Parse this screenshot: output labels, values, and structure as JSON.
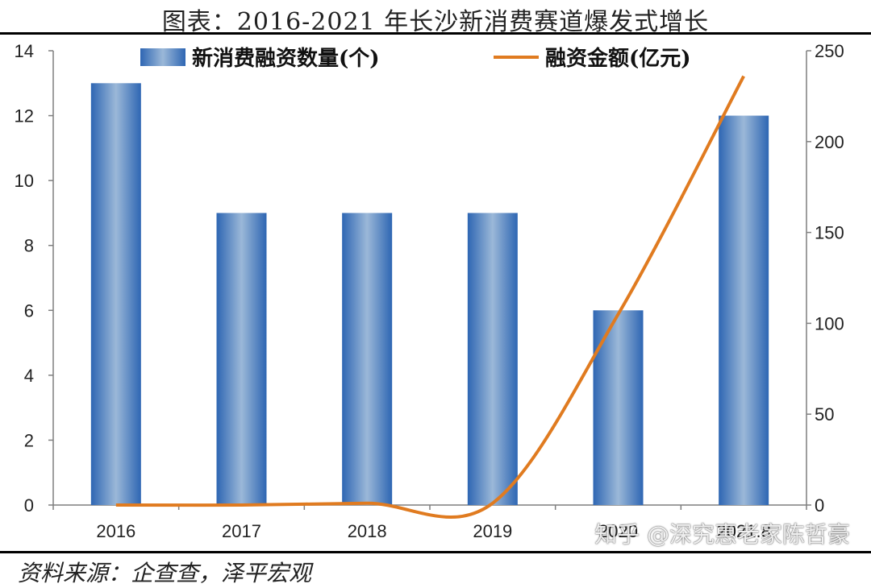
{
  "header": {
    "title": "图表：2016-2021 年长沙新消费赛道爆发式增长"
  },
  "footer": {
    "source": "资料来源：企查查，泽平宏观",
    "watermark": "知乎 @深究惠老家陈哲豪"
  },
  "colors": {
    "bar": "#2f6db8",
    "line": "#e07b20",
    "axis": "#7f7f7f"
  },
  "chart_data": {
    "type": "bar",
    "categories": [
      "2016",
      "2017",
      "2018",
      "2019",
      "2020",
      "2021.8"
    ],
    "series": [
      {
        "name": "新消费融资数量(个)",
        "type": "bar",
        "axis": "left",
        "values": [
          13,
          9,
          9,
          9,
          6,
          12
        ]
      },
      {
        "name": "融资金额(亿元)",
        "type": "line",
        "axis": "right",
        "values": [
          0,
          0,
          1,
          1,
          105,
          236
        ]
      }
    ],
    "y_left": {
      "min": 0,
      "max": 14,
      "ticks": [
        0,
        2,
        4,
        6,
        8,
        10,
        12,
        14
      ]
    },
    "y_right": {
      "min": 0,
      "max": 250,
      "ticks": [
        0,
        50,
        100,
        150,
        200,
        250
      ]
    },
    "legend_position": "top",
    "grid": false
  }
}
